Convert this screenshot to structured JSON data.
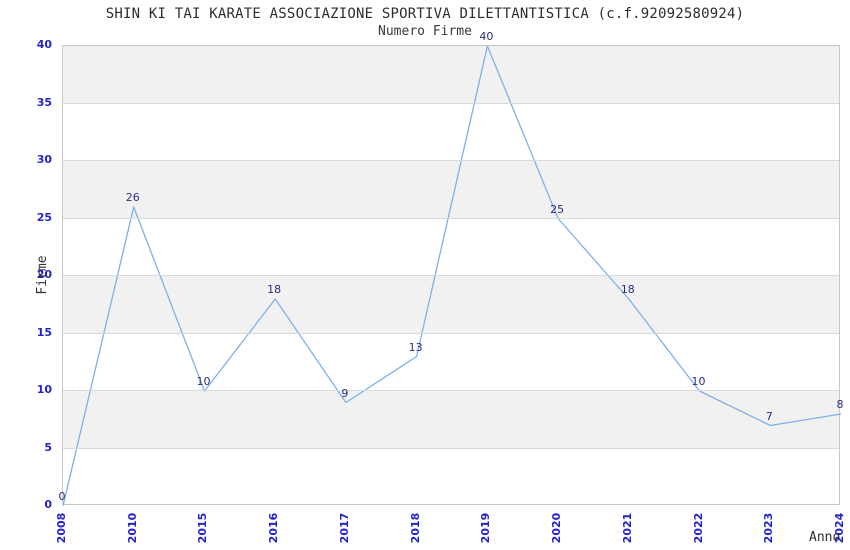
{
  "chart_data": {
    "type": "line",
    "title": "SHIN KI TAI KARATE ASSOCIAZIONE SPORTIVA DILETTANTISTICA (c.f.92092580924)",
    "subtitle": "Numero Firme",
    "xlabel": "Anno",
    "ylabel": "Firme",
    "categories": [
      "2008",
      "2010",
      "2015",
      "2016",
      "2017",
      "2018",
      "2019",
      "2020",
      "2021",
      "2022",
      "2023",
      "2024"
    ],
    "values": [
      0,
      26,
      10,
      18,
      9,
      13,
      40,
      25,
      18,
      10,
      7,
      8
    ],
    "ylim": [
      0,
      40
    ],
    "ytick_step": 5,
    "yticks": [
      0,
      5,
      10,
      15,
      20,
      25,
      30,
      35,
      40
    ],
    "grid": true,
    "band_fill": true,
    "legend": false,
    "data_labels_shown": true,
    "colors": {
      "line": "#7cb1e8",
      "data_label": "#2d2d80",
      "tick_label": "#2323cc",
      "text": "#2e2e2e",
      "band": "#f1f1f1",
      "gridline": "#d9d9d9",
      "plot_border": "#c8c8c8",
      "background": "#ffffff"
    }
  }
}
